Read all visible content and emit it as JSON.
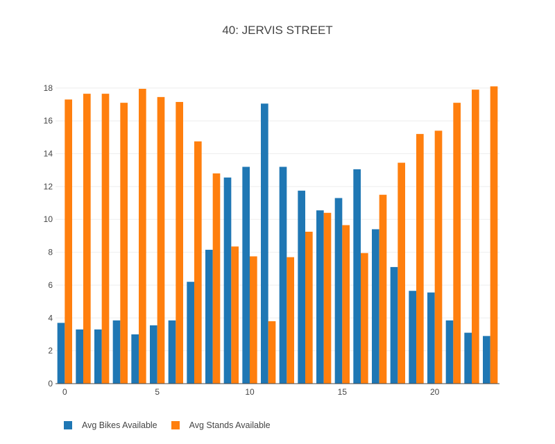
{
  "chart_data": {
    "type": "bar",
    "title": "40: JERVIS STREET",
    "xlabel": "",
    "ylabel": "",
    "x": [
      0,
      1,
      2,
      3,
      4,
      5,
      6,
      7,
      8,
      9,
      10,
      11,
      12,
      13,
      14,
      15,
      16,
      17,
      18,
      19,
      20,
      21,
      22,
      23
    ],
    "xticks": [
      "0",
      "5",
      "10",
      "15",
      "20"
    ],
    "xtick_values": [
      0,
      5,
      10,
      15,
      20
    ],
    "yticks": [
      "0",
      "2",
      "4",
      "6",
      "8",
      "10",
      "12",
      "14",
      "16",
      "18"
    ],
    "ytick_values": [
      0,
      2,
      4,
      6,
      8,
      10,
      12,
      14,
      16,
      18
    ],
    "ylim": [
      0,
      18.5
    ],
    "series": [
      {
        "name": "Avg Bikes Available",
        "color": "#1f77b4",
        "values": [
          3.7,
          3.3,
          3.3,
          3.85,
          3.0,
          3.55,
          3.85,
          6.2,
          8.15,
          12.55,
          13.2,
          17.05,
          13.2,
          11.75,
          10.55,
          11.3,
          13.05,
          9.4,
          7.1,
          5.65,
          5.55,
          3.85,
          3.1,
          2.9
        ]
      },
      {
        "name": "Avg Stands Available",
        "color": "#ff7f0e",
        "values": [
          17.3,
          17.65,
          17.65,
          17.1,
          17.95,
          17.45,
          17.15,
          14.75,
          12.8,
          8.35,
          7.75,
          3.8,
          7.7,
          9.25,
          10.4,
          9.65,
          7.95,
          11.5,
          13.45,
          15.2,
          15.4,
          17.1,
          17.9,
          18.1
        ]
      }
    ],
    "legend_position": "bottom-left",
    "grid": true
  }
}
